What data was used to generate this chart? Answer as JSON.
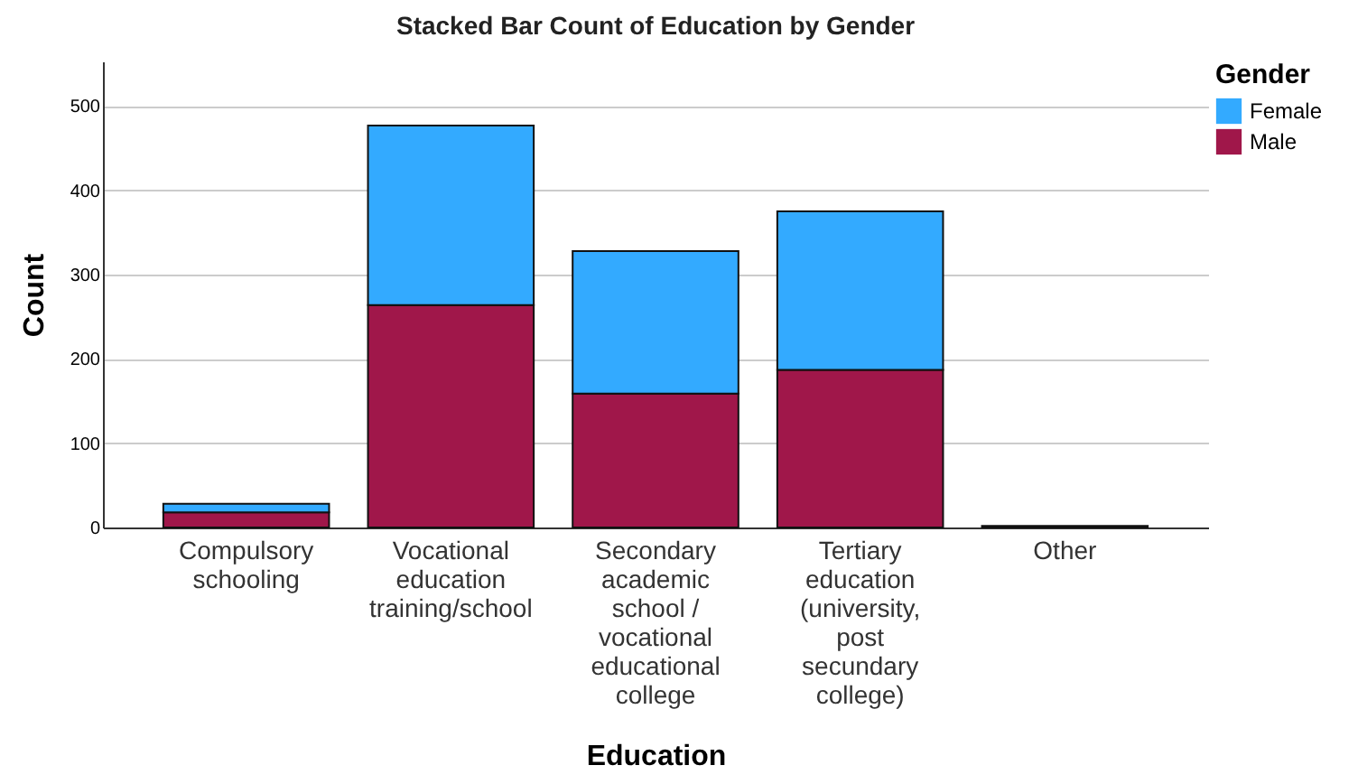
{
  "chart_data": {
    "type": "bar",
    "title": "Stacked Bar Count of Education by Gender",
    "xlabel": "Education",
    "ylabel": "Count",
    "legend_title": "Gender",
    "categories": [
      "Compulsory schooling",
      "Vocational education training/school",
      "Secondary academic school / vocational educational college",
      "Tertiary education (university, post secundary college)",
      "Other"
    ],
    "series": [
      {
        "name": "Male",
        "color": "#a0174a",
        "values": [
          18,
          264,
          159,
          187,
          2
        ]
      },
      {
        "name": "Female",
        "color": "#33aaff",
        "values": [
          10,
          213,
          169,
          188,
          null
        ]
      }
    ],
    "stacked": true,
    "ylim": [
      0,
      553
    ],
    "yticks": [
      0,
      100,
      200,
      300,
      400,
      500
    ],
    "grid": "y",
    "legend": "top right"
  }
}
